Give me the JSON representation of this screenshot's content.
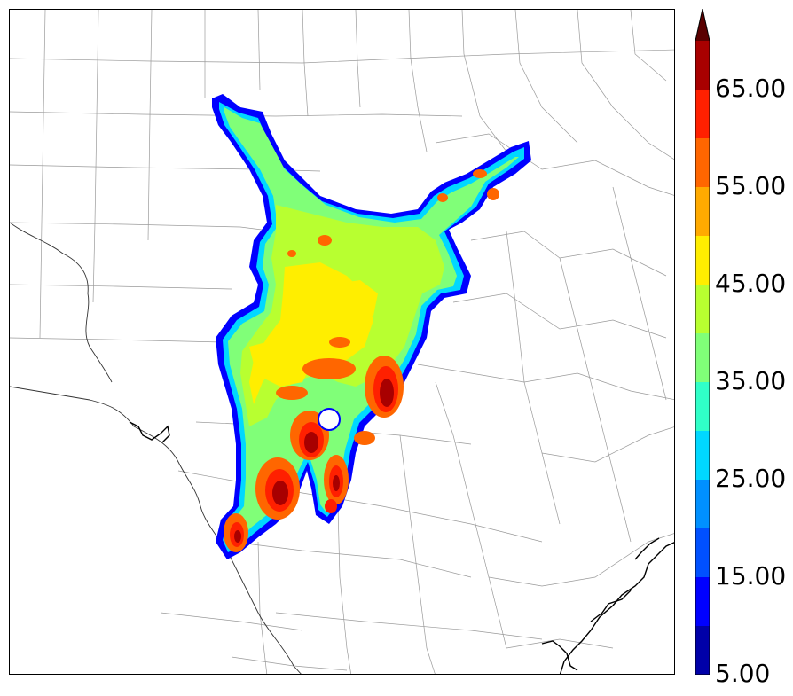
{
  "colorbar": {
    "labels": [
      "65.00",
      "55.00",
      "45.00",
      "35.00",
      "25.00",
      "15.00",
      "5.00"
    ],
    "levels": [
      5,
      10,
      15,
      20,
      25,
      30,
      35,
      40,
      45,
      50,
      55,
      60,
      65,
      70
    ],
    "colors": [
      "#0000a8",
      "#0000ff",
      "#0050ff",
      "#0090ff",
      "#00d8ff",
      "#30ffc8",
      "#80ff78",
      "#b8ff30",
      "#ffee00",
      "#ffaa00",
      "#ff6600",
      "#ff2000",
      "#a80000"
    ],
    "extend": "max"
  }
}
